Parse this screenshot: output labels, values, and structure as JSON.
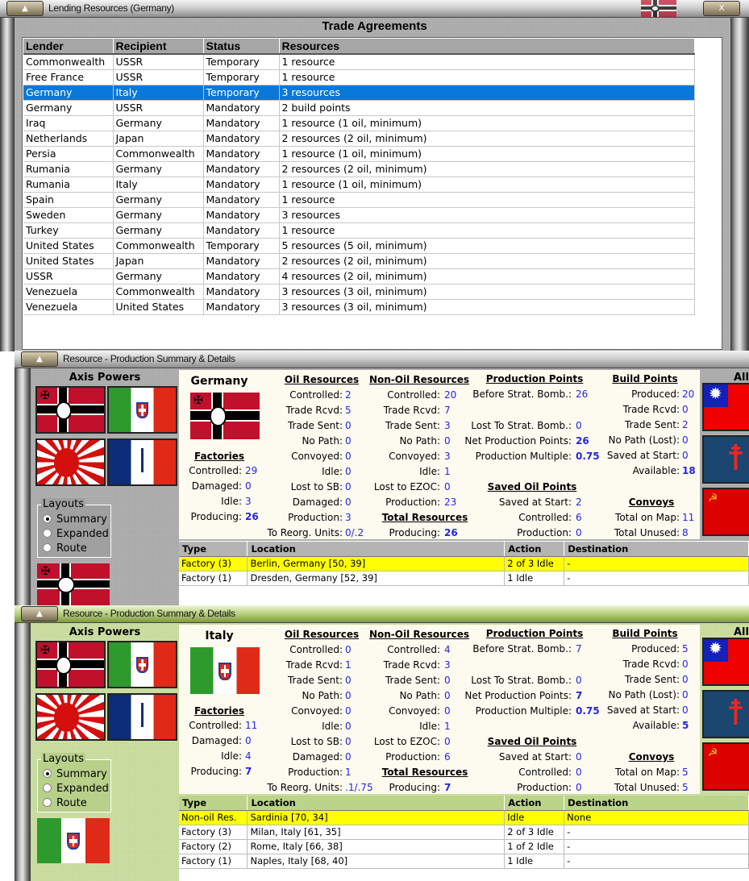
{
  "trade_window": {
    "title": "Lending Resources (Germany)",
    "heading": "Trade Agreements",
    "close_label": "X",
    "columns": [
      "Lender",
      "Recipient",
      "Status",
      "Resources"
    ],
    "selected_row_index": 2,
    "rows": [
      [
        "Commonwealth",
        "USSR",
        "Temporary",
        "1 resource"
      ],
      [
        "Free France",
        "USSR",
        "Temporary",
        "1 resource"
      ],
      [
        "Germany",
        "Italy",
        "Temporary",
        "3 resources"
      ],
      [
        "Germany",
        "USSR",
        "Mandatory",
        "2 build points"
      ],
      [
        "Iraq",
        "Germany",
        "Mandatory",
        "1 resource (1 oil, minimum)"
      ],
      [
        "Netherlands",
        "Japan",
        "Mandatory",
        "2 resources (2 oil, minimum)"
      ],
      [
        "Persia",
        "Commonwealth",
        "Mandatory",
        "1 resource (1 oil, minimum)"
      ],
      [
        "Rumania",
        "Germany",
        "Mandatory",
        "2 resources (2 oil, minimum)"
      ],
      [
        "Rumania",
        "Italy",
        "Mandatory",
        "1 resource (1 oil, minimum)"
      ],
      [
        "Spain",
        "Germany",
        "Mandatory",
        "1 resource"
      ],
      [
        "Sweden",
        "Germany",
        "Mandatory",
        "3 resources"
      ],
      [
        "Turkey",
        "Germany",
        "Mandatory",
        "1 resource"
      ],
      [
        "United States",
        "Commonwealth",
        "Temporary",
        "5 resources (5 oil, minimum)"
      ],
      [
        "United States",
        "Japan",
        "Mandatory",
        "2 resources (2 oil, minimum)"
      ],
      [
        "USSR",
        "Germany",
        "Mandatory",
        "4 resources (2 oil, minimum)"
      ],
      [
        "Venezuela",
        "Commonwealth",
        "Mandatory",
        "3 resources (3 oil, minimum)"
      ],
      [
        "Venezuela",
        "United States",
        "Mandatory",
        "3 resources (3 oil, minimum)"
      ]
    ]
  },
  "production_windows": [
    {
      "title": "Resource - Production Summary & Details",
      "axis_title": "Axis Powers",
      "allies_title": "All",
      "theme": "gray",
      "axis_flags": [
        "germany-flag",
        "italy-flag",
        "japan-flag",
        "vichy-france-flag"
      ],
      "allies_flags": [
        "china-flag",
        "free-france-flag",
        "ussr-flag"
      ],
      "selected_flag": "germany-flag",
      "layouts": {
        "title": "Layouts",
        "options": [
          "Summary",
          "Expanded",
          "Route"
        ],
        "selected": "Summary"
      },
      "country": "Germany",
      "factories": {
        "title": "Factories",
        "items": [
          [
            "Controlled:",
            "29"
          ],
          [
            "Damaged:",
            "0"
          ],
          [
            "Idle:",
            "3"
          ],
          [
            "Producing:",
            "26"
          ]
        ]
      },
      "oil": {
        "title": "Oil Resources",
        "items": [
          [
            "Controlled:",
            "2"
          ],
          [
            "Trade Rcvd:",
            "5"
          ],
          [
            "Trade Sent:",
            "0"
          ],
          [
            "No Path:",
            "0"
          ],
          [
            "Convoyed:",
            "0"
          ],
          [
            "Idle:",
            "0"
          ],
          [
            "Lost to SB:",
            "0"
          ],
          [
            "Damaged:",
            "0"
          ],
          [
            "Production:",
            "3"
          ],
          [
            "To Reorg. Units:",
            "0/.2"
          ]
        ]
      },
      "nonoil": {
        "title": "Non-Oil Resources",
        "items": [
          [
            "Controlled:",
            "20"
          ],
          [
            "Trade Rcvd:",
            "7"
          ],
          [
            "Trade Sent:",
            "3"
          ],
          [
            "No Path:",
            "0"
          ],
          [
            "Convoyed:",
            "3"
          ],
          [
            "Idle:",
            "1"
          ],
          [
            "Lost to EZOC:",
            "0"
          ],
          [
            "Production:",
            "23"
          ]
        ]
      },
      "total": {
        "title": "Total Resources",
        "items": [
          [
            "Producing:",
            "26"
          ]
        ]
      },
      "production": {
        "title": "Production Points",
        "items": [
          [
            "Before Strat. Bomb.:",
            "26"
          ],
          [
            "Lost To Strat. Bomb.:",
            "0"
          ],
          [
            "Net Production Points:",
            "26"
          ],
          [
            "Production Multiple:",
            "0.75"
          ]
        ]
      },
      "saved_oil": {
        "title": "Saved Oil Points",
        "items": [
          [
            "Saved at Start:",
            "2"
          ],
          [
            "Controlled:",
            "6"
          ],
          [
            "Production:",
            "0"
          ]
        ]
      },
      "build": {
        "title": "Build Points",
        "items": [
          [
            "Produced:",
            "20"
          ],
          [
            "Trade Rcvd:",
            "0"
          ],
          [
            "Trade Sent:",
            "2"
          ],
          [
            "No Path (Lost):",
            "0"
          ],
          [
            "Saved at Start:",
            "0"
          ],
          [
            "Available:",
            "18"
          ]
        ]
      },
      "convoys": {
        "title": "Convoys",
        "items": [
          [
            "Total on Map:",
            "11"
          ],
          [
            "Total Unused:",
            "8"
          ]
        ]
      },
      "table": {
        "columns": [
          "Type",
          "Location",
          "Action",
          "Destination"
        ],
        "highlighted_row_index": 0,
        "rows": [
          [
            "Factory (3)",
            "Berlin, Germany [50, 39]",
            "2 of 3 Idle",
            "-"
          ],
          [
            "Factory (1)",
            "Dresden, Germany [52, 39]",
            "1 Idle",
            "-"
          ]
        ]
      }
    },
    {
      "title": "Resource - Production Summary & Details",
      "axis_title": "Axis Powers",
      "allies_title": "All",
      "theme": "green",
      "axis_flags": [
        "germany-flag",
        "italy-flag",
        "japan-flag",
        "vichy-france-flag"
      ],
      "allies_flags": [
        "china-flag",
        "free-france-flag",
        "ussr-flag"
      ],
      "selected_flag": "italy-flag",
      "layouts": {
        "title": "Layouts",
        "options": [
          "Summary",
          "Expanded",
          "Route"
        ],
        "selected": "Summary"
      },
      "country": "Italy",
      "factories": {
        "title": "Factories",
        "items": [
          [
            "Controlled:",
            "11"
          ],
          [
            "Damaged:",
            "0"
          ],
          [
            "Idle:",
            "4"
          ],
          [
            "Producing:",
            "7"
          ]
        ]
      },
      "oil": {
        "title": "Oil Resources",
        "items": [
          [
            "Controlled:",
            "0"
          ],
          [
            "Trade Rcvd:",
            "1"
          ],
          [
            "Trade Sent:",
            "0"
          ],
          [
            "No Path:",
            "0"
          ],
          [
            "Convoyed:",
            "0"
          ],
          [
            "Idle:",
            "0"
          ],
          [
            "Lost to SB:",
            "0"
          ],
          [
            "Damaged:",
            "0"
          ],
          [
            "Production:",
            "1"
          ],
          [
            "To Reorg. Units:",
            ".1/.75"
          ]
        ]
      },
      "nonoil": {
        "title": "Non-Oil Resources",
        "items": [
          [
            "Controlled:",
            "4"
          ],
          [
            "Trade Rcvd:",
            "3"
          ],
          [
            "Trade Sent:",
            "0"
          ],
          [
            "No Path:",
            "0"
          ],
          [
            "Convoyed:",
            "0"
          ],
          [
            "Idle:",
            "1"
          ],
          [
            "Lost to EZOC:",
            "0"
          ],
          [
            "Production:",
            "6"
          ]
        ]
      },
      "total": {
        "title": "Total Resources",
        "items": [
          [
            "Producing:",
            "7"
          ]
        ]
      },
      "production": {
        "title": "Production Points",
        "items": [
          [
            "Before Strat. Bomb.:",
            "7"
          ],
          [
            "Lost To Strat. Bomb.:",
            "0"
          ],
          [
            "Net Production Points:",
            "7"
          ],
          [
            "Production Multiple:",
            "0.75"
          ]
        ]
      },
      "saved_oil": {
        "title": "Saved Oil Points",
        "items": [
          [
            "Saved at Start:",
            "0"
          ],
          [
            "Controlled:",
            "0"
          ],
          [
            "Production:",
            "0"
          ]
        ]
      },
      "build": {
        "title": "Build Points",
        "items": [
          [
            "Produced:",
            "5"
          ],
          [
            "Trade Rcvd:",
            "0"
          ],
          [
            "Trade Sent:",
            "0"
          ],
          [
            "No Path (Lost):",
            "0"
          ],
          [
            "Saved at Start:",
            "0"
          ],
          [
            "Available:",
            "5"
          ]
        ]
      },
      "convoys": {
        "title": "Convoys",
        "items": [
          [
            "Total on Map:",
            "5"
          ],
          [
            "Total Unused:",
            "5"
          ]
        ]
      },
      "table": {
        "columns": [
          "Type",
          "Location",
          "Action",
          "Destination"
        ],
        "highlighted_row_index": 0,
        "rows": [
          [
            "Non-oil Res.",
            "Sardinia [70, 34]",
            "Idle",
            "None"
          ],
          [
            "Factory (3)",
            "Milan, Italy [61, 35]",
            "2 of 3 Idle",
            "-"
          ],
          [
            "Factory (2)",
            "Rome, Italy [66, 38]",
            "1 of 2 Idle",
            "-"
          ],
          [
            "Factory (1)",
            "Naples, Italy [68, 40]",
            "1 Idle",
            "-"
          ]
        ]
      }
    }
  ]
}
